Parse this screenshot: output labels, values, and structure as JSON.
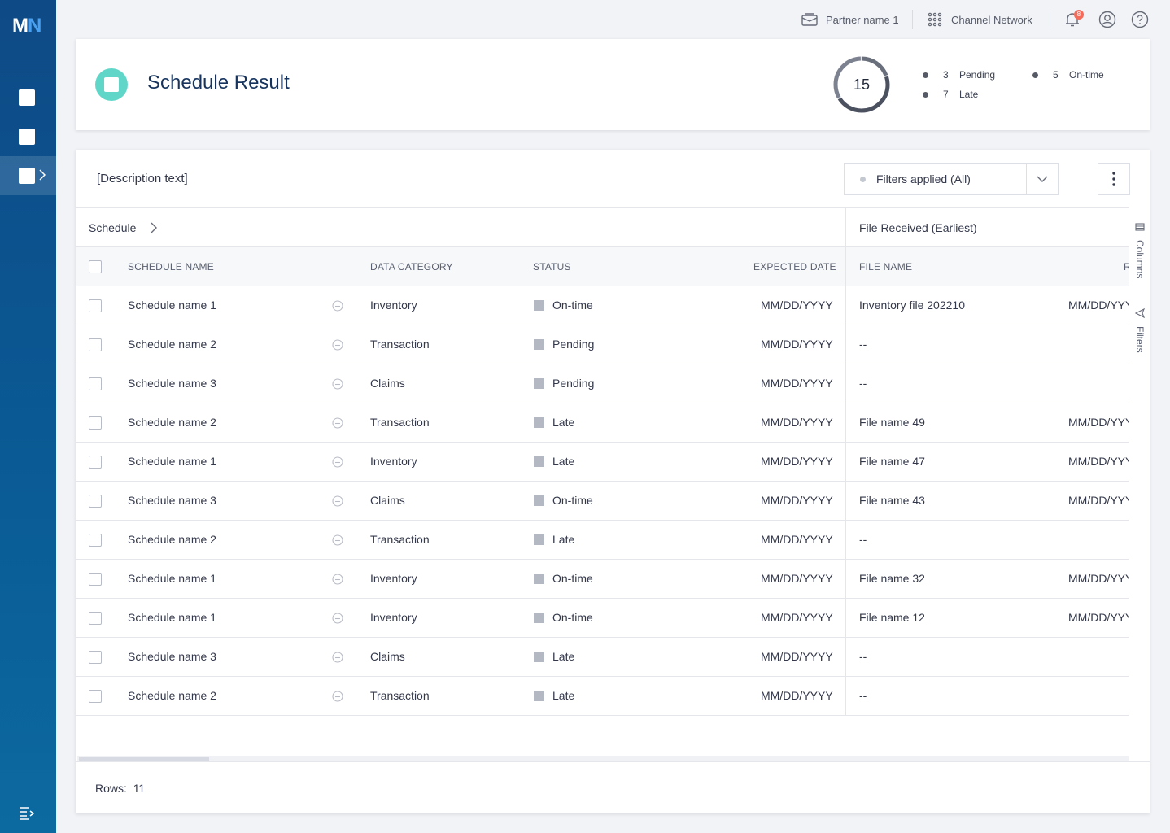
{
  "brand": {
    "logo_m": "M",
    "logo_n": "N"
  },
  "topbar": {
    "partner": "Partner name 1",
    "network": "Channel Network",
    "notification_count": "8"
  },
  "summary": {
    "title": "Schedule Result",
    "total": "15",
    "legend": [
      {
        "count": "3",
        "label": "Pending"
      },
      {
        "count": "7",
        "label": "Late"
      },
      {
        "count": "5",
        "label": "On-time"
      }
    ],
    "donut_segments": [
      3,
      7,
      5
    ]
  },
  "main": {
    "description": "[Description text]",
    "filter_label": "Filters applied (All)",
    "group_left": "Schedule",
    "group_right": "File Received (Earliest)",
    "columns": {
      "schedule_name": "SCHEDULE NAME",
      "data_category": "DATA CATEGORY",
      "status": "STATUS",
      "expected_date": "EXPECTED DATE",
      "file_name": "FILE NAME",
      "received_partial": "R"
    },
    "side_panel": {
      "columns": "Columns",
      "filters": "Filters"
    },
    "rows": [
      {
        "name": "Schedule name 1",
        "category": "Inventory",
        "status": "On-time",
        "expected": "MM/DD/YYYY",
        "file": "Inventory file 202210",
        "received": "MM/DD/YYYY"
      },
      {
        "name": "Schedule name 2",
        "category": "Transaction",
        "status": "Pending",
        "expected": "MM/DD/YYYY",
        "file": "--",
        "received": ""
      },
      {
        "name": "Schedule name 3",
        "category": "Claims",
        "status": "Pending",
        "expected": "MM/DD/YYYY",
        "file": "--",
        "received": ""
      },
      {
        "name": "Schedule name 2",
        "category": "Transaction",
        "status": "Late",
        "expected": "MM/DD/YYYY",
        "file": "File name 49",
        "received": "MM/DD/YYYY"
      },
      {
        "name": "Schedule name 1",
        "category": "Inventory",
        "status": "Late",
        "expected": "MM/DD/YYYY",
        "file": "File name 47",
        "received": "MM/DD/YYYY"
      },
      {
        "name": "Schedule name 3",
        "category": "Claims",
        "status": "On-time",
        "expected": "MM/DD/YYYY",
        "file": "File name 43",
        "received": "MM/DD/YYYY"
      },
      {
        "name": "Schedule name 2",
        "category": "Transaction",
        "status": "Late",
        "expected": "MM/DD/YYYY",
        "file": "--",
        "received": ""
      },
      {
        "name": "Schedule name 1",
        "category": "Inventory",
        "status": "On-time",
        "expected": "MM/DD/YYYY",
        "file": "File name 32",
        "received": "MM/DD/YYYY"
      },
      {
        "name": "Schedule name 1",
        "category": "Inventory",
        "status": "On-time",
        "expected": "MM/DD/YYYY",
        "file": "File name 12",
        "received": "MM/DD/YYYY"
      },
      {
        "name": "Schedule name 3",
        "category": "Claims",
        "status": "Late",
        "expected": "MM/DD/YYYY",
        "file": "--",
        "received": ""
      },
      {
        "name": "Schedule name 2",
        "category": "Transaction",
        "status": "Late",
        "expected": "MM/DD/YYYY",
        "file": "--",
        "received": ""
      }
    ],
    "rows_label": "Rows:",
    "rows_count": "11"
  },
  "colors": {
    "sidebar_top": "#0e4a86",
    "sidebar_bottom": "#0c6aa0",
    "title_icon": "#5fd6c8",
    "title_text": "#16345e",
    "notification_badge": "#f26b5b"
  },
  "icons": [
    "logo",
    "nav-square",
    "chevron-right-icon",
    "menu-collapse-icon",
    "mail-icon",
    "grid-icon",
    "bell-icon",
    "user-icon",
    "help-icon",
    "chevron-down-icon",
    "kebab-icon",
    "message-icon",
    "columns-icon",
    "filter-icon"
  ]
}
